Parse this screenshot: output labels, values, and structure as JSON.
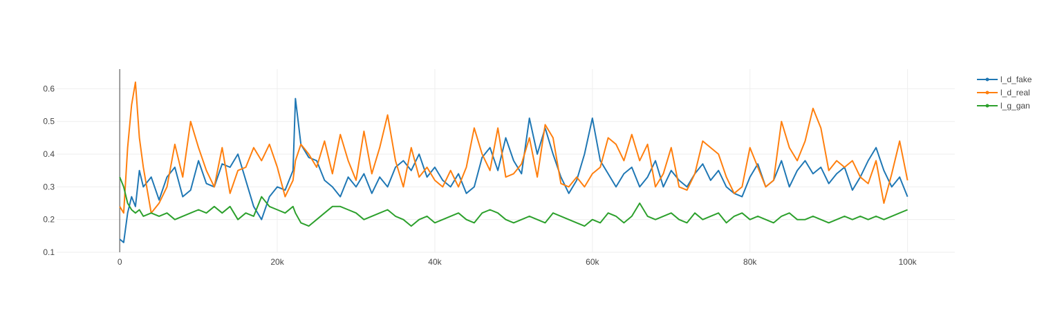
{
  "chart_data": {
    "type": "line",
    "title": "",
    "xlabel": "",
    "ylabel": "",
    "xlim": [
      -8000,
      106000
    ],
    "ylim": [
      0.1,
      0.66
    ],
    "x_ticks": [
      0,
      20000,
      40000,
      60000,
      80000,
      100000
    ],
    "x_tick_labels": [
      "0",
      "20k",
      "40k",
      "60k",
      "80k",
      "100k"
    ],
    "y_ticks": [
      0.1,
      0.2,
      0.3,
      0.4,
      0.5,
      0.6
    ],
    "y_tick_labels": [
      "0.1",
      "0.2",
      "0.3",
      "0.4",
      "0.5",
      "0.6"
    ],
    "grid": true,
    "legend_position": "top-right",
    "x": [
      0,
      500,
      1000,
      1500,
      2000,
      2500,
      3000,
      4000,
      5000,
      6000,
      7000,
      8000,
      9000,
      10000,
      11000,
      12000,
      13000,
      14000,
      15000,
      16000,
      17000,
      18000,
      19000,
      20000,
      21000,
      22000,
      22300,
      23000,
      24000,
      25000,
      26000,
      27000,
      28000,
      29000,
      30000,
      31000,
      32000,
      33000,
      34000,
      35000,
      36000,
      37000,
      38000,
      39000,
      40000,
      41000,
      42000,
      43000,
      44000,
      45000,
      46000,
      47000,
      48000,
      49000,
      50000,
      51000,
      52000,
      53000,
      54000,
      55000,
      56000,
      57000,
      58000,
      59000,
      60000,
      61000,
      62000,
      63000,
      64000,
      65000,
      66000,
      67000,
      68000,
      69000,
      70000,
      71000,
      72000,
      73000,
      74000,
      75000,
      76000,
      77000,
      78000,
      79000,
      80000,
      81000,
      82000,
      83000,
      84000,
      85000,
      86000,
      87000,
      88000,
      89000,
      90000,
      91000,
      92000,
      93000,
      94000,
      95000,
      96000,
      97000,
      98000,
      99000,
      100000
    ],
    "series": [
      {
        "name": "l_d_fake",
        "color": "#1f77b4",
        "values": [
          0.14,
          0.13,
          0.22,
          0.27,
          0.24,
          0.35,
          0.3,
          0.33,
          0.26,
          0.33,
          0.36,
          0.27,
          0.29,
          0.38,
          0.31,
          0.3,
          0.37,
          0.36,
          0.4,
          0.32,
          0.24,
          0.2,
          0.27,
          0.3,
          0.29,
          0.35,
          0.57,
          0.43,
          0.39,
          0.38,
          0.32,
          0.3,
          0.27,
          0.33,
          0.3,
          0.34,
          0.28,
          0.33,
          0.3,
          0.36,
          0.38,
          0.35,
          0.4,
          0.33,
          0.36,
          0.32,
          0.3,
          0.34,
          0.28,
          0.3,
          0.39,
          0.42,
          0.35,
          0.45,
          0.38,
          0.34,
          0.51,
          0.4,
          0.48,
          0.4,
          0.33,
          0.28,
          0.32,
          0.4,
          0.51,
          0.38,
          0.34,
          0.3,
          0.34,
          0.36,
          0.3,
          0.33,
          0.38,
          0.3,
          0.35,
          0.32,
          0.3,
          0.34,
          0.37,
          0.32,
          0.35,
          0.3,
          0.28,
          0.27,
          0.33,
          0.37,
          0.3,
          0.32,
          0.38,
          0.3,
          0.35,
          0.38,
          0.34,
          0.36,
          0.31,
          0.34,
          0.36,
          0.29,
          0.33,
          0.38,
          0.42,
          0.35,
          0.3,
          0.33,
          0.27
        ]
      },
      {
        "name": "l_d_real",
        "color": "#ff7f0e",
        "values": [
          0.24,
          0.22,
          0.42,
          0.55,
          0.62,
          0.45,
          0.36,
          0.22,
          0.25,
          0.3,
          0.43,
          0.33,
          0.5,
          0.42,
          0.35,
          0.3,
          0.42,
          0.28,
          0.35,
          0.36,
          0.42,
          0.38,
          0.43,
          0.36,
          0.27,
          0.32,
          0.38,
          0.43,
          0.4,
          0.36,
          0.44,
          0.34,
          0.46,
          0.38,
          0.32,
          0.47,
          0.34,
          0.42,
          0.52,
          0.38,
          0.3,
          0.42,
          0.33,
          0.36,
          0.32,
          0.3,
          0.35,
          0.3,
          0.36,
          0.48,
          0.4,
          0.35,
          0.48,
          0.33,
          0.34,
          0.37,
          0.45,
          0.33,
          0.49,
          0.45,
          0.31,
          0.3,
          0.33,
          0.3,
          0.34,
          0.36,
          0.45,
          0.43,
          0.38,
          0.46,
          0.38,
          0.43,
          0.3,
          0.34,
          0.42,
          0.3,
          0.29,
          0.34,
          0.44,
          0.42,
          0.4,
          0.33,
          0.28,
          0.3,
          0.42,
          0.36,
          0.3,
          0.32,
          0.5,
          0.42,
          0.38,
          0.44,
          0.54,
          0.48,
          0.35,
          0.38,
          0.36,
          0.38,
          0.33,
          0.31,
          0.38,
          0.25,
          0.34,
          0.44,
          0.32
        ]
      },
      {
        "name": "l_g_gan",
        "color": "#2ca02c",
        "values": [
          0.33,
          0.3,
          0.25,
          0.23,
          0.22,
          0.23,
          0.21,
          0.22,
          0.21,
          0.22,
          0.2,
          0.21,
          0.22,
          0.23,
          0.22,
          0.24,
          0.22,
          0.24,
          0.2,
          0.22,
          0.21,
          0.27,
          0.24,
          0.23,
          0.22,
          0.24,
          0.22,
          0.19,
          0.18,
          0.2,
          0.22,
          0.24,
          0.24,
          0.23,
          0.22,
          0.2,
          0.21,
          0.22,
          0.23,
          0.21,
          0.2,
          0.18,
          0.2,
          0.21,
          0.19,
          0.2,
          0.21,
          0.22,
          0.2,
          0.19,
          0.22,
          0.23,
          0.22,
          0.2,
          0.19,
          0.2,
          0.21,
          0.2,
          0.19,
          0.22,
          0.21,
          0.2,
          0.19,
          0.18,
          0.2,
          0.19,
          0.22,
          0.21,
          0.19,
          0.21,
          0.25,
          0.21,
          0.2,
          0.21,
          0.22,
          0.2,
          0.19,
          0.22,
          0.2,
          0.21,
          0.22,
          0.19,
          0.21,
          0.22,
          0.2,
          0.21,
          0.2,
          0.19,
          0.21,
          0.22,
          0.2,
          0.2,
          0.21,
          0.2,
          0.19,
          0.2,
          0.21,
          0.2,
          0.21,
          0.2,
          0.21,
          0.2,
          0.21,
          0.22,
          0.23
        ]
      }
    ]
  }
}
